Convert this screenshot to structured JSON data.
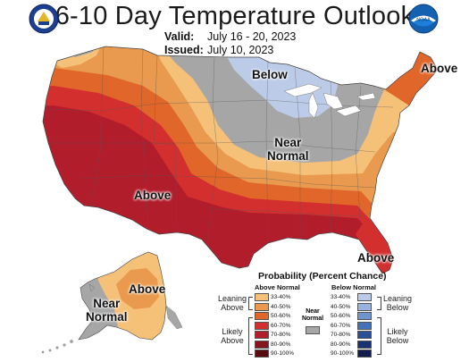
{
  "header": {
    "title": "6-10 Day Temperature Outlook",
    "valid_label": "Valid:",
    "valid_value": "July 16 - 20, 2023",
    "issued_label": "Issued:",
    "issued_value": "July 10, 2023"
  },
  "logos": {
    "left": "doc-seal-icon",
    "right": "noaa-logo-icon",
    "noaa_text": "NOAA"
  },
  "map": {
    "labels": {
      "above_west": "Above",
      "above_northeast": "Above",
      "above_florida": "Above",
      "above_alaska": "Above",
      "below_great_lakes": "Below",
      "near_normal_central_line1": "Near",
      "near_normal_central_line2": "Normal",
      "near_normal_alaska_line1": "Near",
      "near_normal_alaska_line2": "Normal"
    },
    "colors": {
      "near_normal": "#a6a6a6",
      "above_33_40": "#f5c179",
      "above_40_50": "#e99a4e",
      "above_50_60": "#e1662a",
      "above_60_70": "#d42f2f",
      "above_70_80": "#b21d2c",
      "below_33_40": "#bccbe8"
    }
  },
  "legend": {
    "title": "Probability (Percent Chance)",
    "above_header": "Above Normal",
    "below_header": "Below Normal",
    "near_normal_line1": "Near",
    "near_normal_line2": "Normal",
    "leaning_above_1": "Leaning",
    "leaning_above_2": "Above",
    "likely_above_1": "Likely",
    "likely_above_2": "Above",
    "leaning_below_1": "Leaning",
    "leaning_below_2": "Below",
    "likely_below_1": "Likely",
    "likely_below_2": "Below",
    "above": [
      {
        "label": "33-40%",
        "color": "#f5c179"
      },
      {
        "label": "40-50%",
        "color": "#e99a4e"
      },
      {
        "label": "50-60%",
        "color": "#e1662a"
      },
      {
        "label": "60-70%",
        "color": "#d42f2f"
      },
      {
        "label": "70-80%",
        "color": "#b21d2c"
      },
      {
        "label": "80-90%",
        "color": "#85141e"
      },
      {
        "label": "90-100%",
        "color": "#5a0b12"
      }
    ],
    "below": [
      {
        "label": "33-40%",
        "color": "#bccbe8"
      },
      {
        "label": "40-50%",
        "color": "#97b3dd"
      },
      {
        "label": "50-60%",
        "color": "#6f95cf"
      },
      {
        "label": "60-70%",
        "color": "#4472b8"
      },
      {
        "label": "70-80%",
        "color": "#2a4f97"
      },
      {
        "label": "80-90%",
        "color": "#1b3272"
      },
      {
        "label": "90-100%",
        "color": "#111c4d"
      }
    ]
  }
}
